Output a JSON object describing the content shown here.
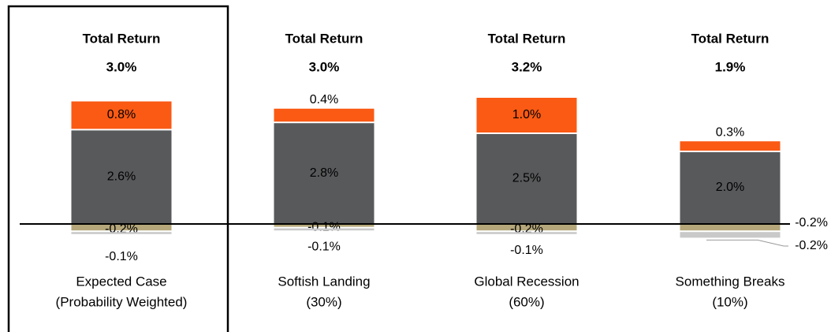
{
  "chart_data": {
    "type": "stacked_bar",
    "categories": [
      [
        "Expected Case",
        "(Probability Weighted)"
      ],
      [
        "Softish Landing",
        "(30%)"
      ],
      [
        "Global Recession",
        "(60%)"
      ],
      [
        "Something Breaks",
        "(10%)"
      ]
    ],
    "total_title": "Total Return",
    "totals": [
      3.0,
      3.0,
      3.2,
      1.9
    ],
    "total_labels": [
      "3.0%",
      "3.0%",
      "3.2%",
      "1.9%"
    ],
    "series": [
      {
        "color": "#58595b",
        "values": [
          2.6,
          2.8,
          2.5,
          2.0
        ],
        "value_labels": [
          "2.6%",
          "2.8%",
          "2.5%",
          "2.0%"
        ]
      },
      {
        "color": "#fa5a14",
        "values": [
          0.8,
          0.4,
          1.0,
          0.3
        ],
        "value_labels": [
          "0.8%",
          "0.4%",
          "1.0%",
          "0.3%"
        ]
      },
      {
        "color": "#b5a77a",
        "values": [
          -0.2,
          -0.1,
          -0.2,
          -0.2
        ],
        "value_labels": [
          "-0.2%",
          "-0.1%",
          "-0.2%",
          "-0.2%"
        ]
      },
      {
        "color": "#c9c9c9",
        "values": [
          -0.1,
          -0.1,
          -0.1,
          -0.2
        ],
        "value_labels": [
          "-0.1%",
          "-0.1%",
          "-0.1%",
          "-0.2%"
        ]
      }
    ]
  }
}
